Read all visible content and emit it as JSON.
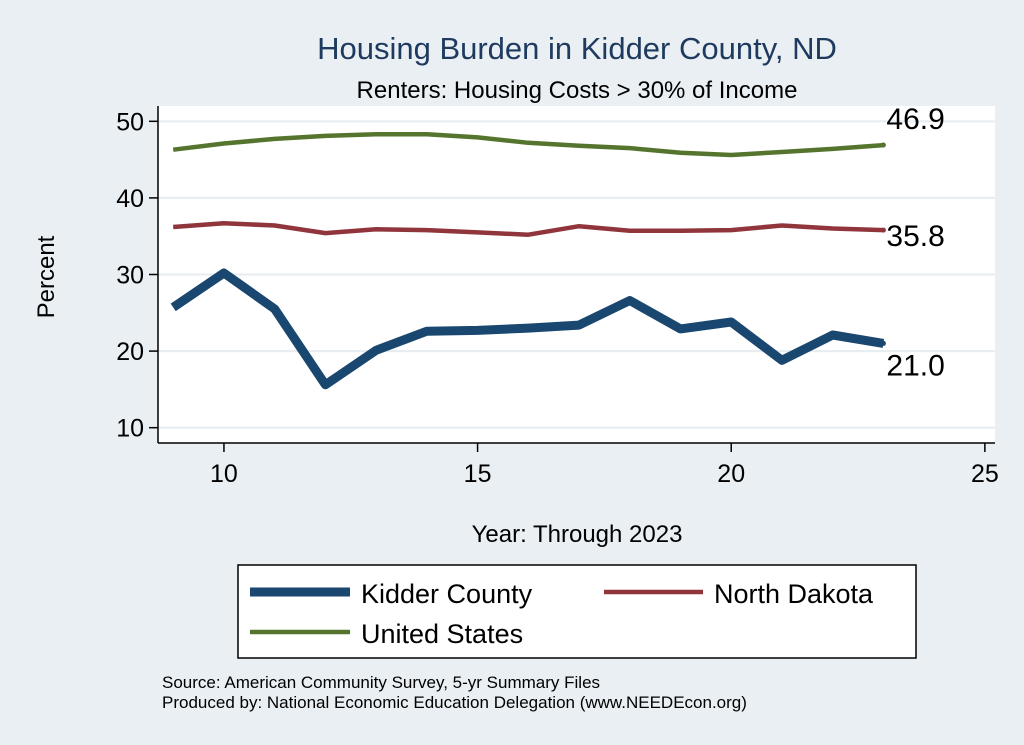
{
  "chart_data": {
    "type": "line",
    "title": "Housing Burden in Kidder County, ND",
    "subtitle": "Renters: Housing Costs > 30% of Income",
    "xlabel": "Year: Through 2023",
    "ylabel": "Percent",
    "xlim": [
      8.7,
      25.2
    ],
    "ylim": [
      8,
      52
    ],
    "xticks": [
      10,
      15,
      20,
      25
    ],
    "yticks": [
      10,
      20,
      30,
      40,
      50
    ],
    "grid": true,
    "x": [
      9,
      10,
      11,
      12,
      13,
      14,
      15,
      16,
      17,
      18,
      19,
      20,
      21,
      22,
      23
    ],
    "series": [
      {
        "name": "Kidder County",
        "color": "#1a476f",
        "width": 9,
        "values": [
          25.7,
          30.2,
          25.5,
          15.6,
          20.1,
          22.6,
          22.7,
          23.0,
          23.4,
          26.6,
          22.9,
          23.8,
          18.8,
          22.1,
          21.0
        ],
        "end_label": "21.0"
      },
      {
        "name": "North Dakota",
        "color": "#90353b",
        "width": 4.5,
        "values": [
          36.2,
          36.7,
          36.4,
          35.4,
          35.9,
          35.8,
          35.5,
          35.2,
          36.3,
          35.7,
          35.7,
          35.8,
          36.4,
          36.0,
          35.8
        ],
        "end_label": "35.8"
      },
      {
        "name": "United States",
        "color": "#55752f",
        "width": 4.5,
        "values": [
          46.3,
          47.1,
          47.7,
          48.1,
          48.3,
          48.3,
          47.9,
          47.2,
          46.8,
          46.5,
          45.9,
          45.6,
          46.0,
          46.4,
          46.9
        ],
        "end_label": "46.9"
      }
    ],
    "legend": {
      "placement": "bottom",
      "entries": [
        "Kidder County",
        "North Dakota",
        "United States"
      ]
    }
  },
  "notes": {
    "source": "Source: American Community Survey, 5-yr Summary Files",
    "produced": "Produced by: National Economic Education Delegation (www.NEEDEcon.org)"
  }
}
